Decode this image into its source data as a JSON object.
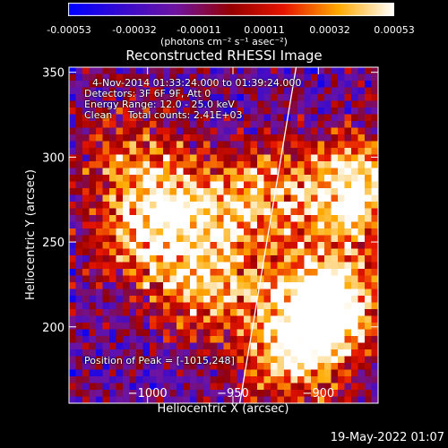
{
  "colorbar": {
    "ticks": [
      "-0.00053",
      "-0.00032",
      "-0.00011",
      "0.00011",
      "0.00032",
      "0.00053"
    ],
    "units": "(photons cm⁻² s⁻¹ asec⁻²)",
    "range": [
      -0.00053,
      0.00053
    ]
  },
  "chart_data": {
    "type": "heatmap",
    "title": "Reconstructed RHESSI Image",
    "xlabel": "Heliocentric X (arcsec)",
    "ylabel": "Heliocentric Y (arcsec)",
    "xlim": [
      -1046,
      -865
    ],
    "ylim": [
      155,
      353
    ],
    "xticks": [
      -1000,
      -950,
      -900
    ],
    "xtick_labels": [
      "−1000",
      "−950",
      "−900"
    ],
    "yticks": [
      200,
      250,
      300,
      350
    ],
    "ytick_labels": [
      "200",
      "250",
      "300",
      "350"
    ],
    "limb_line": [
      [
        -946,
        155
      ],
      [
        -913,
        353
      ]
    ],
    "grid": false,
    "info": {
      "time": "4-Nov-2014 01:33:24.000 to 01:39:24.000",
      "detectors": "Detectors: 3F 6F 9F, Att 0",
      "energy": "Energy Range: 12.0 - 25.0 keV",
      "method": "Clean     Total counts: 2.41E+03",
      "peak": "Position of Peak = [-1015,248]"
    }
  },
  "footer": {
    "date": "19-May-2022 01:07"
  }
}
